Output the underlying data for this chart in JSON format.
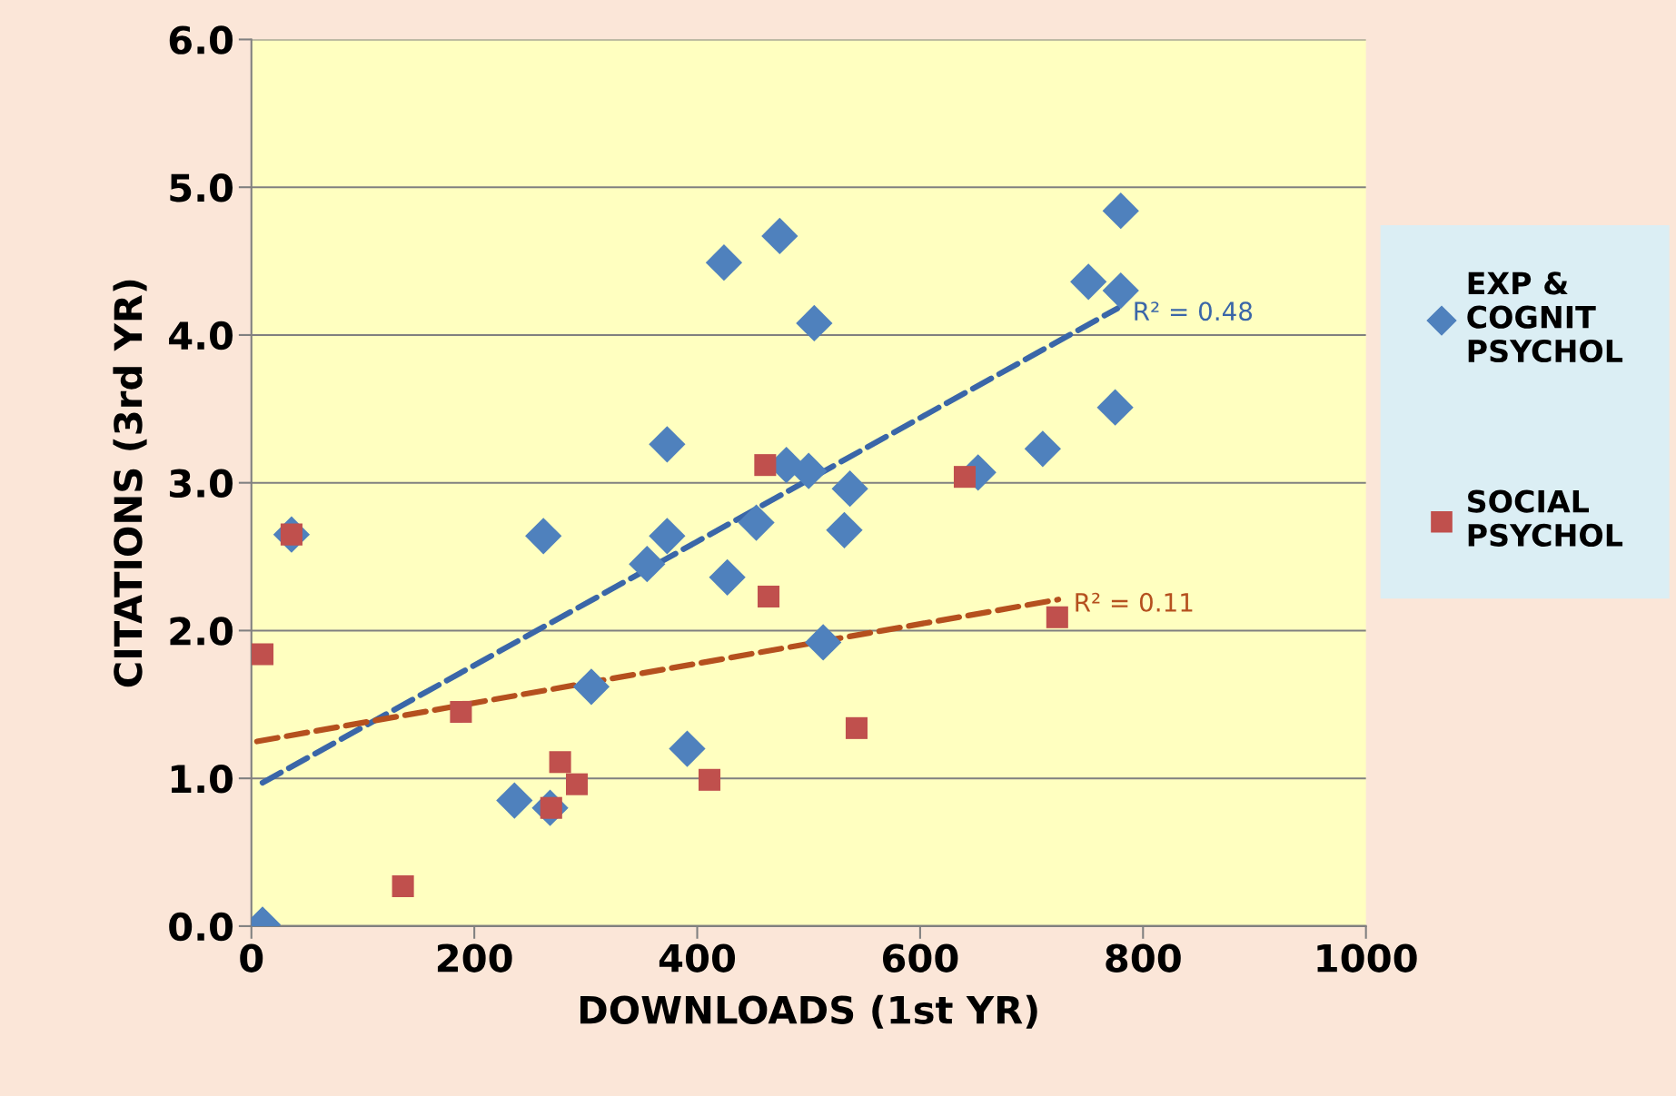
{
  "chart_data": {
    "type": "scatter",
    "xlabel": "DOWNLOADS (1st YR)",
    "ylabel": "CITATIONS (3rd YR)",
    "xlim": [
      0,
      1000
    ],
    "xticks": [
      0,
      200,
      400,
      600,
      800,
      1000
    ],
    "ylim": [
      0,
      6
    ],
    "yticks": [
      {
        "value": 0,
        "label": "0.0"
      },
      {
        "value": 1,
        "label": "1.0"
      },
      {
        "value": 2,
        "label": "2.0"
      },
      {
        "value": 3,
        "label": "3.0"
      },
      {
        "value": 4,
        "label": "4.0"
      },
      {
        "value": 5,
        "label": "5.0"
      },
      {
        "value": 6,
        "label": "6.0"
      }
    ],
    "grid": "y",
    "legend": "right",
    "series": [
      {
        "name": "EXP & COGNIT PSYCHOL",
        "color": "#4f81bd",
        "marker": "diamond",
        "x": [
          10,
          236,
          268,
          262,
          305,
          355,
          373,
          373,
          391,
          427,
          424,
          453,
          474,
          480,
          500,
          505,
          513,
          532,
          537,
          652,
          710,
          751,
          775,
          780,
          780,
          36
        ],
        "values": [
          0.01,
          0.85,
          0.8,
          2.64,
          1.62,
          2.45,
          2.64,
          3.26,
          1.2,
          2.36,
          4.49,
          2.73,
          4.67,
          3.12,
          3.08,
          4.08,
          1.92,
          2.68,
          2.96,
          3.07,
          3.23,
          4.36,
          3.51,
          4.3,
          4.84,
          2.65
        ]
      },
      {
        "name": "SOCIAL PSYCHOL",
        "color": "#c0504d",
        "marker": "square",
        "x": [
          10,
          36,
          136,
          188,
          269,
          277,
          292,
          411,
          461,
          464,
          543,
          640,
          723
        ],
        "values": [
          1.84,
          2.65,
          0.27,
          1.45,
          0.8,
          1.11,
          0.96,
          0.99,
          3.12,
          2.23,
          1.34,
          3.04,
          2.09
        ]
      },
      {
        "type": "line",
        "color": "#3a66a8",
        "line_style": "dashed",
        "x": [
          10,
          777
        ],
        "values": [
          0.97,
          4.18
        ]
      },
      {
        "type": "line",
        "color": "#b5501e",
        "line_style": "dashed",
        "x": [
          5,
          724
        ],
        "values": [
          1.25,
          2.21
        ]
      }
    ],
    "annotations": [
      "R² = 0.48",
      "R² = 0.11"
    ]
  }
}
